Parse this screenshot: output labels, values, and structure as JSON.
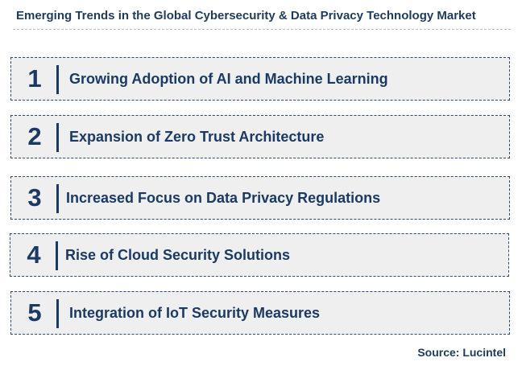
{
  "title": "Emerging Trends in the Global Cybersecurity & Data Privacy Technology Market",
  "trends": [
    {
      "number": "1",
      "label": "Growing Adoption of AI and Machine Learning"
    },
    {
      "number": "2",
      "label": "Expansion of Zero Trust Architecture"
    },
    {
      "number": "3",
      "label": "Increased Focus on Data Privacy Regulations"
    },
    {
      "number": "4",
      "label": "Rise of Cloud Security Solutions"
    },
    {
      "number": "5",
      "label": "Integration of IoT Security Measures"
    }
  ],
  "source": "Source: Lucintel",
  "colors": {
    "text": "#1a3a63",
    "box_fill": "#efefef",
    "box_border": "#2d4a72"
  }
}
